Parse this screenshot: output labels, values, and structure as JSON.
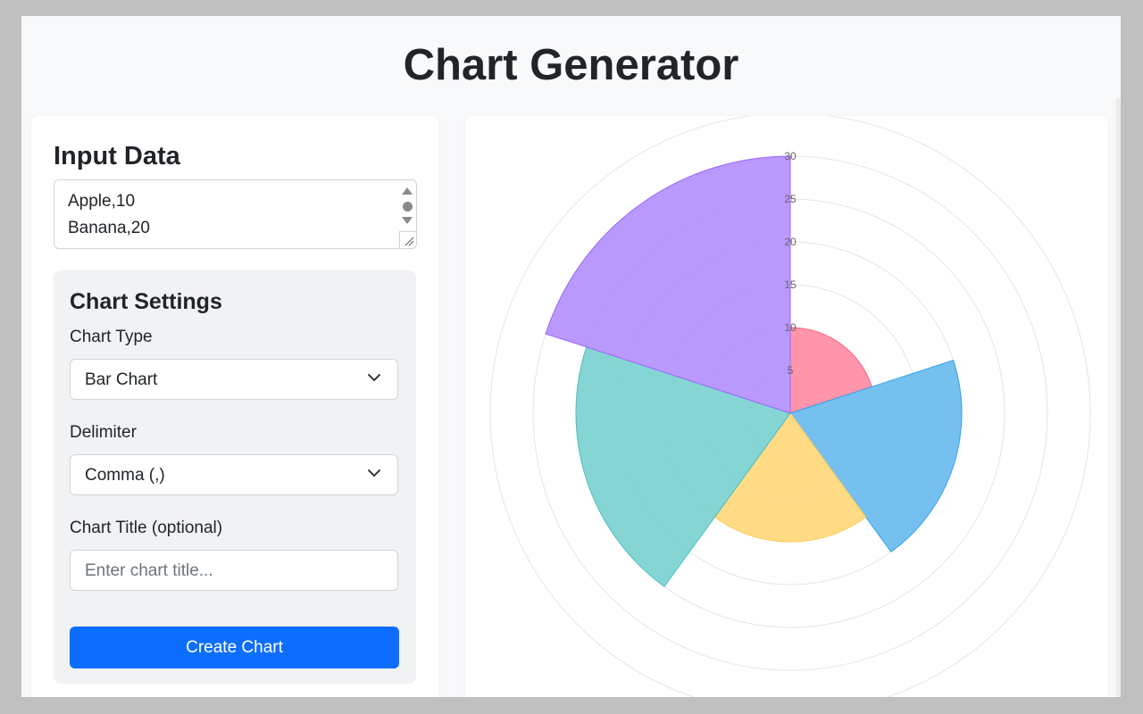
{
  "header": {
    "title": "Chart Generator"
  },
  "input_panel": {
    "heading": "Input Data",
    "textarea_lines": [
      "Apple,10",
      "Banana,20"
    ]
  },
  "settings": {
    "heading": "Chart Settings",
    "chart_type_label": "Chart Type",
    "chart_type_value": "Bar Chart",
    "delimiter_label": "Delimiter",
    "delimiter_value": "Comma (,)",
    "title_label": "Chart Title (optional)",
    "title_placeholder": "Enter chart title...",
    "create_button": "Create Chart"
  },
  "chart_data": {
    "type": "polarArea",
    "r_ticks": [
      5,
      10,
      15,
      20,
      25,
      30
    ],
    "r_max": 30,
    "grid": true,
    "legend": "none",
    "values": [
      10,
      20,
      15,
      25,
      30
    ],
    "colors": [
      "#ff8fa6",
      "#6fbdef",
      "#ffd980",
      "#80d3d3",
      "#b693fc"
    ],
    "border_colors": [
      "#ff6384",
      "#36a2eb",
      "#ffcd56",
      "#4bc0c0",
      "#9966ff"
    ]
  }
}
